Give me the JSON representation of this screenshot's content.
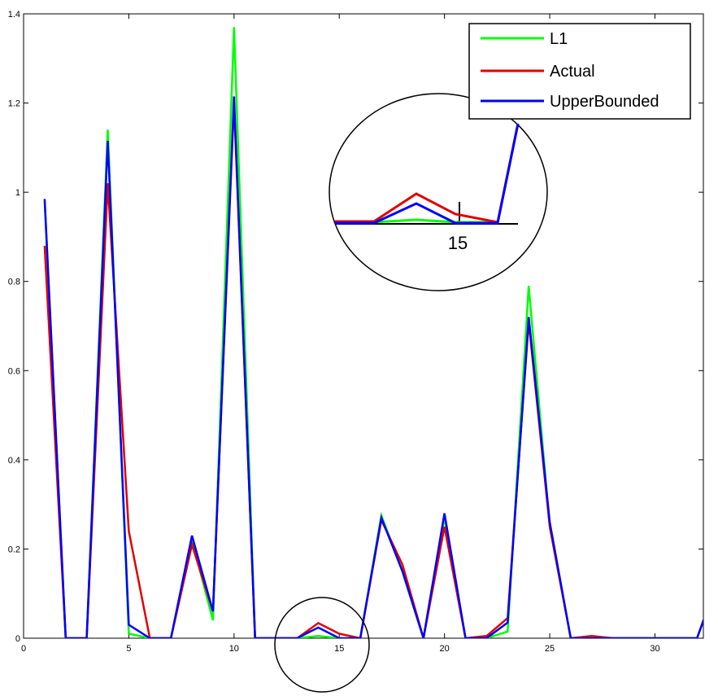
{
  "chart_data": {
    "type": "line",
    "title": "",
    "xlabel": "",
    "ylabel": "",
    "xlim": [
      0,
      32.3
    ],
    "ylim": [
      0,
      1.4
    ],
    "xticks": [
      0,
      5,
      10,
      15,
      20,
      25,
      30
    ],
    "yticks": [
      0,
      0.2,
      0.4,
      0.6,
      0.8,
      1,
      1.2,
      1.4
    ],
    "xtick_labels": [
      "0",
      "5",
      "10",
      "15",
      "20",
      "25",
      "30"
    ],
    "ytick_labels": [
      "0",
      "0.2",
      "0.4",
      "0.6",
      "0.8",
      "1",
      "1.2",
      "1.4"
    ],
    "grid": false,
    "legend_position": "top-right",
    "x": [
      1,
      2,
      3,
      4,
      5,
      6,
      7,
      8,
      9,
      10,
      11,
      12,
      13,
      14,
      15,
      16,
      17,
      18,
      19,
      20,
      21,
      22,
      23,
      24,
      25,
      26,
      27,
      28,
      29,
      30,
      31,
      32,
      33
    ],
    "series": [
      {
        "name": "L1",
        "color": "#00ff00",
        "values": [
          0.98,
          0,
          0,
          1.14,
          0.01,
          0,
          0,
          0.22,
          0.04,
          1.37,
          0,
          0,
          0,
          0.005,
          0,
          0,
          0.275,
          0.15,
          0,
          0.27,
          0,
          0,
          0.015,
          0.79,
          0.25,
          0,
          0,
          0,
          0,
          0,
          0,
          0,
          0.13
        ]
      },
      {
        "name": "Actual",
        "color": "#e00000",
        "values": [
          0.88,
          0,
          0,
          1.02,
          0.24,
          0,
          0,
          0.21,
          0.06,
          1.2,
          0,
          0,
          0,
          0.034,
          0.01,
          0,
          0.265,
          0.165,
          0,
          0.25,
          0,
          0.005,
          0.045,
          0.71,
          0.25,
          0,
          0.005,
          0,
          0,
          0,
          0,
          0,
          0.13
        ]
      },
      {
        "name": "UpperBounded",
        "color": "#0000ff",
        "values": [
          0.985,
          0,
          0,
          1.115,
          0.03,
          0,
          0,
          0.23,
          0.06,
          1.215,
          0,
          0,
          0,
          0.024,
          0,
          0,
          0.27,
          0.15,
          0,
          0.28,
          0,
          0,
          0.035,
          0.72,
          0.26,
          0,
          0,
          0,
          0,
          0,
          0,
          0,
          0.13
        ]
      }
    ],
    "inset": {
      "tick_label": "15",
      "description_xrange": [
        12,
        17
      ]
    }
  }
}
